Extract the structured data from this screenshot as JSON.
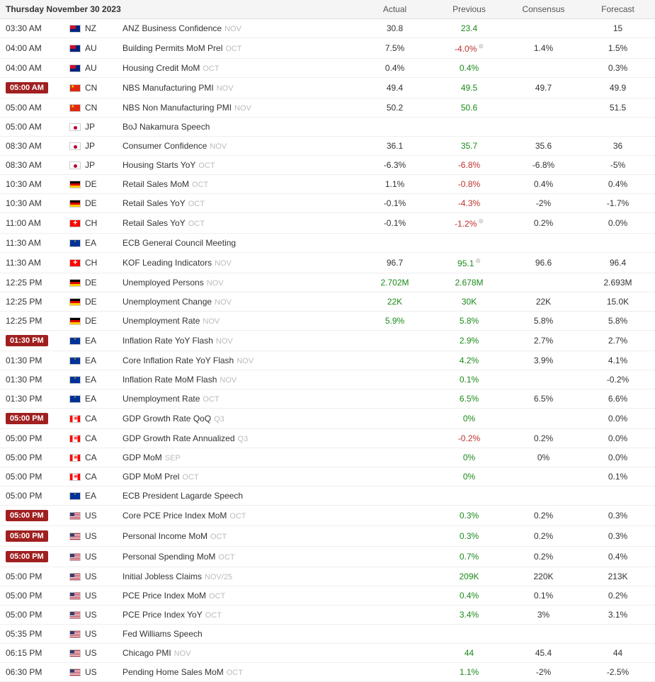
{
  "header": {
    "date": "Thursday November 30 2023",
    "cols": [
      "Actual",
      "Previous",
      "Consensus",
      "Forecast"
    ]
  },
  "colors": {
    "badge_bg": "#a02020",
    "badge_fg": "#ffffff",
    "positive": "#1a8a1a",
    "negative": "#c03030",
    "neutral": "#333333",
    "period_muted": "#bbbbbb",
    "row_border": "#eeeeee",
    "header_bg": "#f5f5f5"
  },
  "rows": [
    {
      "time": "03:30 AM",
      "time_badge": false,
      "cc": "NZ",
      "event": "ANZ Business Confidence",
      "period": "NOV",
      "actual": {
        "v": "30.8",
        "c": "neutral"
      },
      "previous": {
        "v": "23.4",
        "c": "pos"
      },
      "consensus": {
        "v": "",
        "c": "neutral"
      },
      "forecast": {
        "v": "15",
        "c": "neutral"
      }
    },
    {
      "time": "04:00 AM",
      "time_badge": false,
      "cc": "AU",
      "event": "Building Permits MoM Prel",
      "period": "OCT",
      "actual": {
        "v": "7.5%",
        "c": "neutral"
      },
      "previous": {
        "v": "-4.0%",
        "c": "neg",
        "revised": true
      },
      "consensus": {
        "v": "1.4%",
        "c": "neutral"
      },
      "forecast": {
        "v": "1.5%",
        "c": "neutral"
      }
    },
    {
      "time": "04:00 AM",
      "time_badge": false,
      "cc": "AU",
      "event": "Housing Credit MoM",
      "period": "OCT",
      "actual": {
        "v": "0.4%",
        "c": "neutral"
      },
      "previous": {
        "v": "0.4%",
        "c": "pos"
      },
      "consensus": {
        "v": "",
        "c": "neutral"
      },
      "forecast": {
        "v": "0.3%",
        "c": "neutral"
      }
    },
    {
      "time": "05:00 AM",
      "time_badge": true,
      "cc": "CN",
      "event": "NBS Manufacturing PMI",
      "period": "NOV",
      "actual": {
        "v": "49.4",
        "c": "neutral"
      },
      "previous": {
        "v": "49.5",
        "c": "pos"
      },
      "consensus": {
        "v": "49.7",
        "c": "neutral"
      },
      "forecast": {
        "v": "49.9",
        "c": "neutral"
      }
    },
    {
      "time": "05:00 AM",
      "time_badge": false,
      "cc": "CN",
      "event": "NBS Non Manufacturing PMI",
      "period": "NOV",
      "actual": {
        "v": "50.2",
        "c": "neutral"
      },
      "previous": {
        "v": "50.6",
        "c": "pos"
      },
      "consensus": {
        "v": "",
        "c": "neutral"
      },
      "forecast": {
        "v": "51.5",
        "c": "neutral"
      }
    },
    {
      "time": "05:00 AM",
      "time_badge": false,
      "cc": "JP",
      "event": "BoJ Nakamura Speech",
      "period": "",
      "actual": {
        "v": "",
        "c": "neutral"
      },
      "previous": {
        "v": "",
        "c": "neutral"
      },
      "consensus": {
        "v": "",
        "c": "neutral"
      },
      "forecast": {
        "v": "",
        "c": "neutral"
      }
    },
    {
      "time": "08:30 AM",
      "time_badge": false,
      "cc": "JP",
      "event": "Consumer Confidence",
      "period": "NOV",
      "actual": {
        "v": "36.1",
        "c": "neutral"
      },
      "previous": {
        "v": "35.7",
        "c": "pos"
      },
      "consensus": {
        "v": "35.6",
        "c": "neutral"
      },
      "forecast": {
        "v": "36",
        "c": "neutral"
      }
    },
    {
      "time": "08:30 AM",
      "time_badge": false,
      "cc": "JP",
      "event": "Housing Starts YoY",
      "period": "OCT",
      "actual": {
        "v": "-6.3%",
        "c": "neutral"
      },
      "previous": {
        "v": "-6.8%",
        "c": "neg"
      },
      "consensus": {
        "v": "-6.8%",
        "c": "neutral"
      },
      "forecast": {
        "v": "-5%",
        "c": "neutral"
      }
    },
    {
      "time": "10:30 AM",
      "time_badge": false,
      "cc": "DE",
      "event": "Retail Sales MoM",
      "period": "OCT",
      "actual": {
        "v": "1.1%",
        "c": "neutral"
      },
      "previous": {
        "v": "-0.8%",
        "c": "neg"
      },
      "consensus": {
        "v": "0.4%",
        "c": "neutral"
      },
      "forecast": {
        "v": "0.4%",
        "c": "neutral"
      }
    },
    {
      "time": "10:30 AM",
      "time_badge": false,
      "cc": "DE",
      "event": "Retail Sales YoY",
      "period": "OCT",
      "actual": {
        "v": "-0.1%",
        "c": "neutral"
      },
      "previous": {
        "v": "-4.3%",
        "c": "neg"
      },
      "consensus": {
        "v": "-2%",
        "c": "neutral"
      },
      "forecast": {
        "v": "-1.7%",
        "c": "neutral"
      }
    },
    {
      "time": "11:00 AM",
      "time_badge": false,
      "cc": "CH",
      "event": "Retail Sales YoY",
      "period": "OCT",
      "actual": {
        "v": "-0.1%",
        "c": "neutral"
      },
      "previous": {
        "v": "-1.2%",
        "c": "neg",
        "revised": true
      },
      "consensus": {
        "v": "0.2%",
        "c": "neutral"
      },
      "forecast": {
        "v": "0.0%",
        "c": "neutral"
      }
    },
    {
      "time": "11:30 AM",
      "time_badge": false,
      "cc": "EA",
      "event": "ECB General Council Meeting",
      "period": "",
      "actual": {
        "v": "",
        "c": "neutral"
      },
      "previous": {
        "v": "",
        "c": "neutral"
      },
      "consensus": {
        "v": "",
        "c": "neutral"
      },
      "forecast": {
        "v": "",
        "c": "neutral"
      }
    },
    {
      "time": "11:30 AM",
      "time_badge": false,
      "cc": "CH",
      "event": "KOF Leading Indicators",
      "period": "NOV",
      "actual": {
        "v": "96.7",
        "c": "neutral"
      },
      "previous": {
        "v": "95.1",
        "c": "pos",
        "revised": true
      },
      "consensus": {
        "v": "96.6",
        "c": "neutral"
      },
      "forecast": {
        "v": "96.4",
        "c": "neutral"
      }
    },
    {
      "time": "12:25 PM",
      "time_badge": false,
      "cc": "DE",
      "event": "Unemployed Persons",
      "period": "NOV",
      "actual": {
        "v": "2.702M",
        "c": "pos"
      },
      "previous": {
        "v": "2.678M",
        "c": "pos"
      },
      "consensus": {
        "v": "",
        "c": "neutral"
      },
      "forecast": {
        "v": "2.693M",
        "c": "neutral"
      }
    },
    {
      "time": "12:25 PM",
      "time_badge": false,
      "cc": "DE",
      "event": "Unemployment Change",
      "period": "NOV",
      "actual": {
        "v": "22K",
        "c": "pos"
      },
      "previous": {
        "v": "30K",
        "c": "pos"
      },
      "consensus": {
        "v": "22K",
        "c": "neutral"
      },
      "forecast": {
        "v": "15.0K",
        "c": "neutral"
      }
    },
    {
      "time": "12:25 PM",
      "time_badge": false,
      "cc": "DE",
      "event": "Unemployment Rate",
      "period": "NOV",
      "actual": {
        "v": "5.9%",
        "c": "pos"
      },
      "previous": {
        "v": "5.8%",
        "c": "pos"
      },
      "consensus": {
        "v": "5.8%",
        "c": "neutral"
      },
      "forecast": {
        "v": "5.8%",
        "c": "neutral"
      }
    },
    {
      "time": "01:30 PM",
      "time_badge": true,
      "cc": "EA",
      "event": "Inflation Rate YoY Flash",
      "period": "NOV",
      "actual": {
        "v": "",
        "c": "neutral"
      },
      "previous": {
        "v": "2.9%",
        "c": "pos"
      },
      "consensus": {
        "v": "2.7%",
        "c": "neutral"
      },
      "forecast": {
        "v": "2.7%",
        "c": "neutral"
      }
    },
    {
      "time": "01:30 PM",
      "time_badge": false,
      "cc": "EA",
      "event": "Core Inflation Rate YoY Flash",
      "period": "NOV",
      "actual": {
        "v": "",
        "c": "neutral"
      },
      "previous": {
        "v": "4.2%",
        "c": "pos"
      },
      "consensus": {
        "v": "3.9%",
        "c": "neutral"
      },
      "forecast": {
        "v": "4.1%",
        "c": "neutral"
      }
    },
    {
      "time": "01:30 PM",
      "time_badge": false,
      "cc": "EA",
      "event": "Inflation Rate MoM Flash",
      "period": "NOV",
      "actual": {
        "v": "",
        "c": "neutral"
      },
      "previous": {
        "v": "0.1%",
        "c": "pos"
      },
      "consensus": {
        "v": "",
        "c": "neutral"
      },
      "forecast": {
        "v": "-0.2%",
        "c": "neutral"
      }
    },
    {
      "time": "01:30 PM",
      "time_badge": false,
      "cc": "EA",
      "event": "Unemployment Rate",
      "period": "OCT",
      "actual": {
        "v": "",
        "c": "neutral"
      },
      "previous": {
        "v": "6.5%",
        "c": "pos"
      },
      "consensus": {
        "v": "6.5%",
        "c": "neutral"
      },
      "forecast": {
        "v": "6.6%",
        "c": "neutral"
      }
    },
    {
      "time": "05:00 PM",
      "time_badge": true,
      "cc": "CA",
      "event": "GDP Growth Rate QoQ",
      "period": "Q3",
      "actual": {
        "v": "",
        "c": "neutral"
      },
      "previous": {
        "v": "0%",
        "c": "pos"
      },
      "consensus": {
        "v": "",
        "c": "neutral"
      },
      "forecast": {
        "v": "0.0%",
        "c": "neutral"
      }
    },
    {
      "time": "05:00 PM",
      "time_badge": false,
      "cc": "CA",
      "event": "GDP Growth Rate Annualized",
      "period": "Q3",
      "actual": {
        "v": "",
        "c": "neutral"
      },
      "previous": {
        "v": "-0.2%",
        "c": "neg"
      },
      "consensus": {
        "v": "0.2%",
        "c": "neutral"
      },
      "forecast": {
        "v": "0.0%",
        "c": "neutral"
      }
    },
    {
      "time": "05:00 PM",
      "time_badge": false,
      "cc": "CA",
      "event": "GDP MoM",
      "period": "SEP",
      "actual": {
        "v": "",
        "c": "neutral"
      },
      "previous": {
        "v": "0%",
        "c": "pos"
      },
      "consensus": {
        "v": "0%",
        "c": "neutral"
      },
      "forecast": {
        "v": "0.0%",
        "c": "neutral"
      }
    },
    {
      "time": "05:00 PM",
      "time_badge": false,
      "cc": "CA",
      "event": "GDP MoM Prel",
      "period": "OCT",
      "actual": {
        "v": "",
        "c": "neutral"
      },
      "previous": {
        "v": "0%",
        "c": "pos"
      },
      "consensus": {
        "v": "",
        "c": "neutral"
      },
      "forecast": {
        "v": "0.1%",
        "c": "neutral"
      }
    },
    {
      "time": "05:00 PM",
      "time_badge": false,
      "cc": "EA",
      "event": "ECB President Lagarde Speech",
      "period": "",
      "actual": {
        "v": "",
        "c": "neutral"
      },
      "previous": {
        "v": "",
        "c": "neutral"
      },
      "consensus": {
        "v": "",
        "c": "neutral"
      },
      "forecast": {
        "v": "",
        "c": "neutral"
      }
    },
    {
      "time": "05:00 PM",
      "time_badge": true,
      "cc": "US",
      "event": "Core PCE Price Index MoM",
      "period": "OCT",
      "actual": {
        "v": "",
        "c": "neutral"
      },
      "previous": {
        "v": "0.3%",
        "c": "pos"
      },
      "consensus": {
        "v": "0.2%",
        "c": "neutral"
      },
      "forecast": {
        "v": "0.3%",
        "c": "neutral"
      }
    },
    {
      "time": "05:00 PM",
      "time_badge": true,
      "cc": "US",
      "event": "Personal Income MoM",
      "period": "OCT",
      "actual": {
        "v": "",
        "c": "neutral"
      },
      "previous": {
        "v": "0.3%",
        "c": "pos"
      },
      "consensus": {
        "v": "0.2%",
        "c": "neutral"
      },
      "forecast": {
        "v": "0.3%",
        "c": "neutral"
      }
    },
    {
      "time": "05:00 PM",
      "time_badge": true,
      "cc": "US",
      "event": "Personal Spending MoM",
      "period": "OCT",
      "actual": {
        "v": "",
        "c": "neutral"
      },
      "previous": {
        "v": "0.7%",
        "c": "pos"
      },
      "consensus": {
        "v": "0.2%",
        "c": "neutral"
      },
      "forecast": {
        "v": "0.4%",
        "c": "neutral"
      }
    },
    {
      "time": "05:00 PM",
      "time_badge": false,
      "cc": "US",
      "event": "Initial Jobless Claims",
      "period": "NOV/25",
      "actual": {
        "v": "",
        "c": "neutral"
      },
      "previous": {
        "v": "209K",
        "c": "pos"
      },
      "consensus": {
        "v": "220K",
        "c": "neutral"
      },
      "forecast": {
        "v": "213K",
        "c": "neutral"
      }
    },
    {
      "time": "05:00 PM",
      "time_badge": false,
      "cc": "US",
      "event": "PCE Price Index MoM",
      "period": "OCT",
      "actual": {
        "v": "",
        "c": "neutral"
      },
      "previous": {
        "v": "0.4%",
        "c": "pos"
      },
      "consensus": {
        "v": "0.1%",
        "c": "neutral"
      },
      "forecast": {
        "v": "0.2%",
        "c": "neutral"
      }
    },
    {
      "time": "05:00 PM",
      "time_badge": false,
      "cc": "US",
      "event": "PCE Price Index YoY",
      "period": "OCT",
      "actual": {
        "v": "",
        "c": "neutral"
      },
      "previous": {
        "v": "3.4%",
        "c": "pos"
      },
      "consensus": {
        "v": "3%",
        "c": "neutral"
      },
      "forecast": {
        "v": "3.1%",
        "c": "neutral"
      }
    },
    {
      "time": "05:35 PM",
      "time_badge": false,
      "cc": "US",
      "event": "Fed Williams Speech",
      "period": "",
      "actual": {
        "v": "",
        "c": "neutral"
      },
      "previous": {
        "v": "",
        "c": "neutral"
      },
      "consensus": {
        "v": "",
        "c": "neutral"
      },
      "forecast": {
        "v": "",
        "c": "neutral"
      }
    },
    {
      "time": "06:15 PM",
      "time_badge": false,
      "cc": "US",
      "event": "Chicago PMI",
      "period": "NOV",
      "actual": {
        "v": "",
        "c": "neutral"
      },
      "previous": {
        "v": "44",
        "c": "pos"
      },
      "consensus": {
        "v": "45.4",
        "c": "neutral"
      },
      "forecast": {
        "v": "44",
        "c": "neutral"
      }
    },
    {
      "time": "06:30 PM",
      "time_badge": false,
      "cc": "US",
      "event": "Pending Home Sales MoM",
      "period": "OCT",
      "actual": {
        "v": "",
        "c": "neutral"
      },
      "previous": {
        "v": "1.1%",
        "c": "pos"
      },
      "consensus": {
        "v": "-2%",
        "c": "neutral"
      },
      "forecast": {
        "v": "-2.5%",
        "c": "neutral"
      }
    }
  ]
}
